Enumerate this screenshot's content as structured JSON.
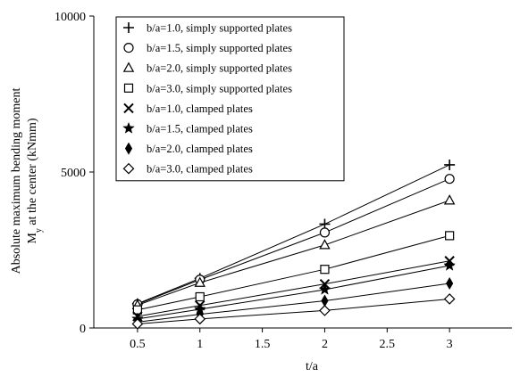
{
  "chart_data": {
    "type": "line",
    "title": "",
    "xlabel": "t/a",
    "ylabel_line1": "Absolute maximum bending moment",
    "ylabel_line2_main": "M",
    "ylabel_line2_sub": "y",
    "ylabel_line2_rest": " at the center (kNmm)",
    "xlim": [
      0.15,
      3.5
    ],
    "ylim": [
      0,
      10000
    ],
    "x_ticks": [
      0.5,
      1,
      1.5,
      2,
      2.5,
      3
    ],
    "x_tick_labels": [
      "0.5",
      "1",
      "1.5",
      "2",
      "2.5",
      "3"
    ],
    "y_ticks": [
      0,
      5000,
      10000
    ],
    "y_tick_labels": [
      "0",
      "5000",
      "10000"
    ],
    "grid": false,
    "legend_position": "top-left",
    "x": [
      0.5,
      1,
      2,
      3
    ],
    "series": [
      {
        "name": "b/a=1.0, simply supported plates",
        "marker": "plus",
        "values": [
          780,
          1590,
          3330,
          5230
        ]
      },
      {
        "name": "b/a=1.5, simply supported plates",
        "marker": "circle",
        "values": [
          760,
          1550,
          3060,
          4780
        ]
      },
      {
        "name": "b/a=2.0, simply supported plates",
        "marker": "triangle",
        "values": [
          730,
          1450,
          2660,
          4090
        ]
      },
      {
        "name": "b/a=3.0, simply supported plates",
        "marker": "square",
        "values": [
          580,
          1000,
          1880,
          2960
        ]
      },
      {
        "name": "b/a=1.0, clamped plates",
        "marker": "x",
        "values": [
          370,
          720,
          1410,
          2150
        ]
      },
      {
        "name": "b/a=1.5, clamped plates",
        "marker": "star",
        "values": [
          290,
          600,
          1230,
          2000
        ]
      },
      {
        "name": "b/a=2.0, clamped plates",
        "marker": "diamond-filled",
        "values": [
          190,
          440,
          870,
          1430
        ]
      },
      {
        "name": "b/a=3.0, clamped plates",
        "marker": "diamond-open",
        "values": [
          130,
          290,
          560,
          930
        ]
      }
    ]
  }
}
